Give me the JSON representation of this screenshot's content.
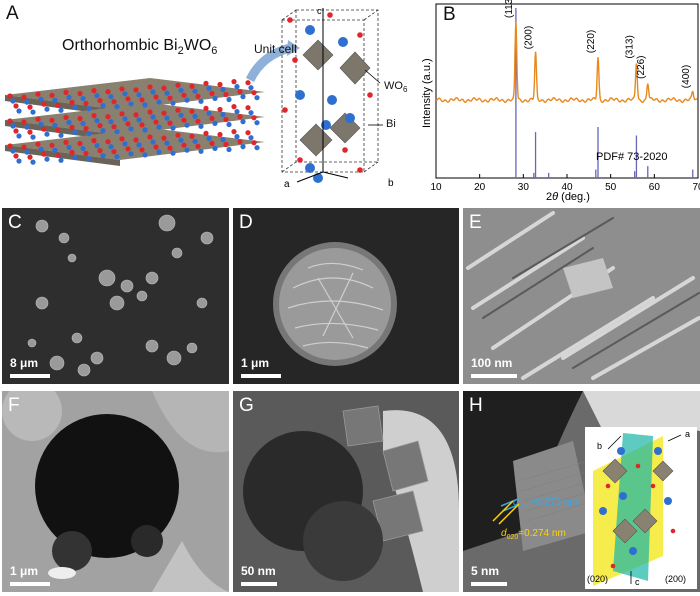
{
  "panels": {
    "a": {
      "label": "A",
      "title_main": "Orthorhombic Bi",
      "title_sub1": "2",
      "title_mid": "WO",
      "title_sub2": "6",
      "unit_cell": "Unit cell",
      "axis_a": "a",
      "axis_b": "b",
      "axis_c": "c",
      "wo6_main": "WO",
      "wo6_sub": "6",
      "bi": "Bi"
    },
    "b": {
      "label": "B",
      "ylabel": "Intensity (a.u.)",
      "xlabel_prefix": "2",
      "xlabel_theta": "θ",
      "xlabel_suffix": " (deg.)",
      "ref_label": "PDF# 73-2020"
    },
    "c": {
      "label": "C",
      "scale": "8 μm"
    },
    "d": {
      "label": "D",
      "scale": "1 μm"
    },
    "e": {
      "label": "E",
      "scale": "100 nm"
    },
    "f": {
      "label": "F",
      "scale": "1 μm"
    },
    "g": {
      "label": "G",
      "scale": "50 nm"
    },
    "h": {
      "label": "H",
      "scale": "5 nm",
      "d1_main": "d",
      "d1_sub": "200",
      "d1_value": "=0.273 nm",
      "d2_main": "d",
      "d2_sub": "020",
      "d2_value": "=0.274 nm",
      "plane1": "(020)",
      "plane2": "(200)",
      "axis_a": "a",
      "axis_b": "b",
      "axis_c": "c"
    }
  },
  "chart_data": {
    "type": "line",
    "xlabel": "2θ (deg.)",
    "ylabel": "Intensity (a.u.)",
    "xlim": [
      10,
      70
    ],
    "xticks": [
      10,
      20,
      30,
      40,
      50,
      60,
      70
    ],
    "series": [
      {
        "color": "#e8891f",
        "peaks": [
          {
            "x": 28.3,
            "h": 1.0,
            "label": "(113)"
          },
          {
            "x": 32.8,
            "h": 0.6,
            "label": "(200)"
          },
          {
            "x": 47.1,
            "h": 0.55,
            "label": "(220)"
          },
          {
            "x": 55.9,
            "h": 0.48,
            "label": "(313)"
          },
          {
            "x": 58.5,
            "h": 0.22,
            "label": "(226)"
          },
          {
            "x": 68.8,
            "h": 0.1,
            "label": "(400)"
          }
        ]
      }
    ],
    "reference": {
      "name": "PDF# 73-2020",
      "color": "#6666bb",
      "lines": [
        {
          "x": 28.3,
          "h": 1.0
        },
        {
          "x": 32.8,
          "h": 0.27
        },
        {
          "x": 47.1,
          "h": 0.3
        },
        {
          "x": 55.9,
          "h": 0.25
        },
        {
          "x": 58.5,
          "h": 0.07
        },
        {
          "x": 32.4,
          "h": 0.03
        },
        {
          "x": 35.8,
          "h": 0.03
        },
        {
          "x": 46.6,
          "h": 0.05
        },
        {
          "x": 55.5,
          "h": 0.04
        },
        {
          "x": 68.8,
          "h": 0.05
        }
      ]
    }
  }
}
